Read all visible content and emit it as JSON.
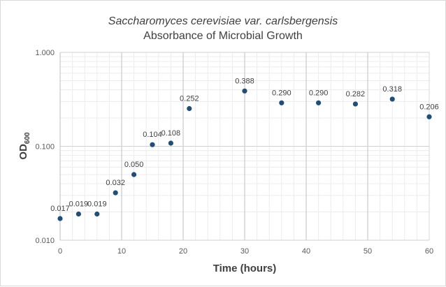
{
  "chart_data": {
    "type": "scatter",
    "title": {
      "line1": "Saccharomyces cerevisiae var. carlsbergensis",
      "line2": "Absorbance of Microbial Growth"
    },
    "xlabel": "Time (hours)",
    "ylabel": {
      "base": "OD",
      "subscript": "600"
    },
    "xlim": [
      0,
      60
    ],
    "ylim": [
      0.01,
      1.0
    ],
    "y_scale": "log",
    "x_ticks": [
      "0",
      "10",
      "20",
      "30",
      "40",
      "50",
      "60"
    ],
    "y_ticks": [
      "0.010",
      "0.100",
      "1.000"
    ],
    "grid": true,
    "legend": "none",
    "marker_color": "#1f4e79",
    "points": [
      {
        "x": 0,
        "y": 0.017,
        "label": "0.017"
      },
      {
        "x": 3,
        "y": 0.019,
        "label": "0.019"
      },
      {
        "x": 6,
        "y": 0.019,
        "label": "0.019"
      },
      {
        "x": 9,
        "y": 0.032,
        "label": "0.032"
      },
      {
        "x": 12,
        "y": 0.05,
        "label": "0.050"
      },
      {
        "x": 15,
        "y": 0.104,
        "label": "0.104"
      },
      {
        "x": 18,
        "y": 0.108,
        "label": "0.108"
      },
      {
        "x": 21,
        "y": 0.252,
        "label": "0.252"
      },
      {
        "x": 30,
        "y": 0.388,
        "label": "0.388"
      },
      {
        "x": 36,
        "y": 0.29,
        "label": "0.290"
      },
      {
        "x": 42,
        "y": 0.29,
        "label": "0.290"
      },
      {
        "x": 48,
        "y": 0.282,
        "label": "0.282"
      },
      {
        "x": 54,
        "y": 0.318,
        "label": "0.318"
      },
      {
        "x": 60,
        "y": 0.206,
        "label": "0.206"
      }
    ]
  }
}
